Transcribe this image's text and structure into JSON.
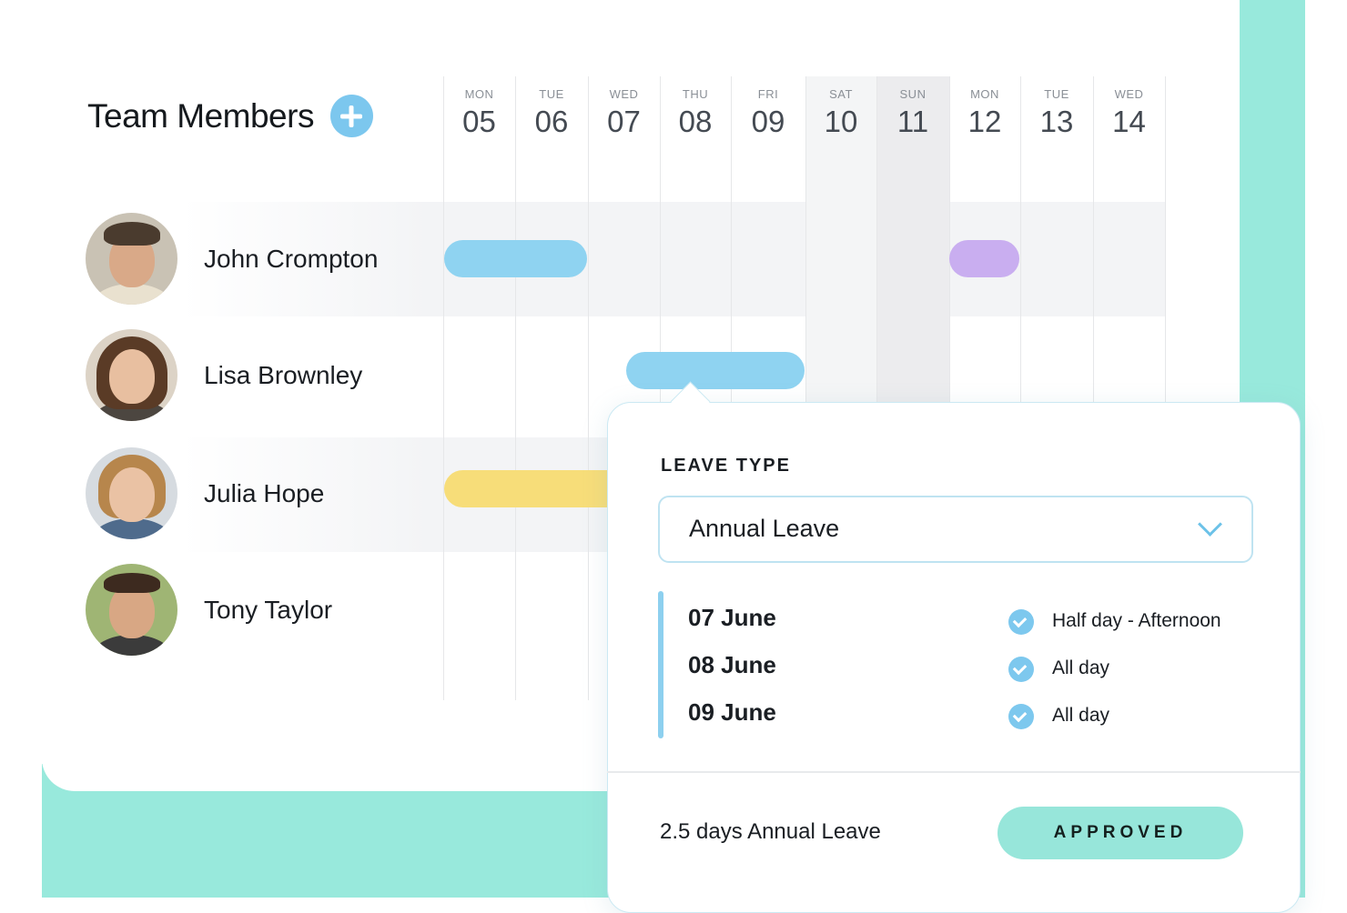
{
  "header": {
    "title": "Team Members",
    "add_icon": "plus-icon"
  },
  "days": [
    {
      "name": "MON",
      "num": "05"
    },
    {
      "name": "TUE",
      "num": "06"
    },
    {
      "name": "WED",
      "num": "07"
    },
    {
      "name": "THU",
      "num": "08"
    },
    {
      "name": "FRI",
      "num": "09"
    },
    {
      "name": "SAT",
      "num": "10"
    },
    {
      "name": "SUN",
      "num": "11"
    },
    {
      "name": "MON",
      "num": "12"
    },
    {
      "name": "TUE",
      "num": "13"
    },
    {
      "name": "WED",
      "num": "14"
    }
  ],
  "members": [
    {
      "name": "John Crompton"
    },
    {
      "name": "Lisa Brownley"
    },
    {
      "name": "Julia Hope"
    },
    {
      "name": "Tony Taylor"
    }
  ],
  "leave_colors": {
    "annual": "#8fd3f1",
    "other": "#c9aef0",
    "pending": "#f7dd79"
  },
  "popup": {
    "leave_type_label": "LEAVE TYPE",
    "leave_type_value": "Annual Leave",
    "dates": [
      {
        "date": "07 June",
        "detail": "Half day - Afternoon"
      },
      {
        "date": "08 June",
        "detail": "All day"
      },
      {
        "date": "09 June",
        "detail": "All day"
      }
    ],
    "summary": "2.5 days Annual Leave",
    "status": "APPROVED"
  },
  "colors": {
    "accent": "#98e9dc",
    "primary_blue": "#7cc7ee"
  }
}
